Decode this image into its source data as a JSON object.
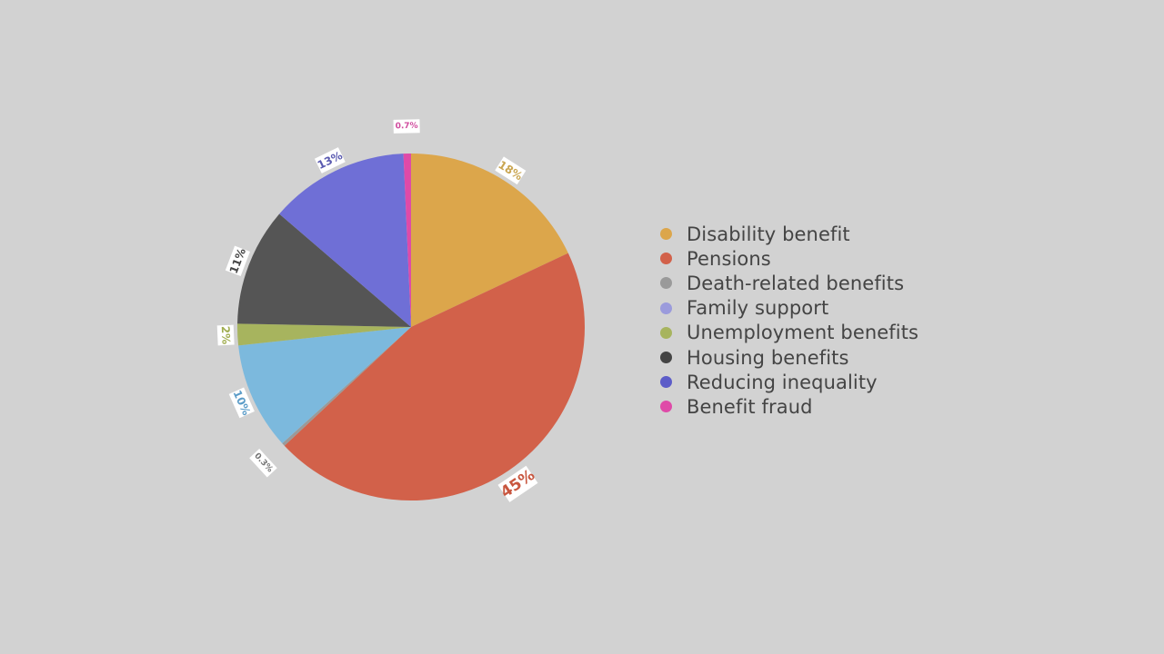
{
  "chart_data": {
    "type": "pie",
    "title": "",
    "start_angle_deg": 0,
    "direction": "clockwise",
    "legend_position": "right",
    "slices": [
      {
        "name": "Disability benefit",
        "value": 18,
        "label": "18%",
        "color": "#dca64b"
      },
      {
        "name": "Pensions",
        "value": 45,
        "label": "45%",
        "color": "#d2614a"
      },
      {
        "name": "Death-related benefits",
        "value": 0.3,
        "label": "0.3%",
        "color": "#9a9a9a"
      },
      {
        "name": "Family support",
        "value": 10,
        "label": "10%",
        "color": "#7cb9dd"
      },
      {
        "name": "Unemployment benefits",
        "value": 2,
        "label": "2%",
        "color": "#a7b45e"
      },
      {
        "name": "Housing benefits",
        "value": 11,
        "label": "11%",
        "color": "#555555"
      },
      {
        "name": "Reducing inequality",
        "value": 13,
        "label": "13%",
        "color": "#6f6fd6"
      },
      {
        "name": "Benefit fraud",
        "value": 0.7,
        "label": "0.7%",
        "color": "#df4aa8"
      }
    ],
    "label_colors": [
      "#c9a550",
      "#c8563f",
      "#777777",
      "#5b9cc8",
      "#a0ad50",
      "#444444",
      "#5a5ab0",
      "#d04b9e"
    ]
  },
  "legend": {
    "dot_colors": [
      "#dca64b",
      "#d2614a",
      "#9a9a9a",
      "#9b9bdc",
      "#a7b45e",
      "#444444",
      "#5c5cc8",
      "#df4aa8"
    ]
  }
}
